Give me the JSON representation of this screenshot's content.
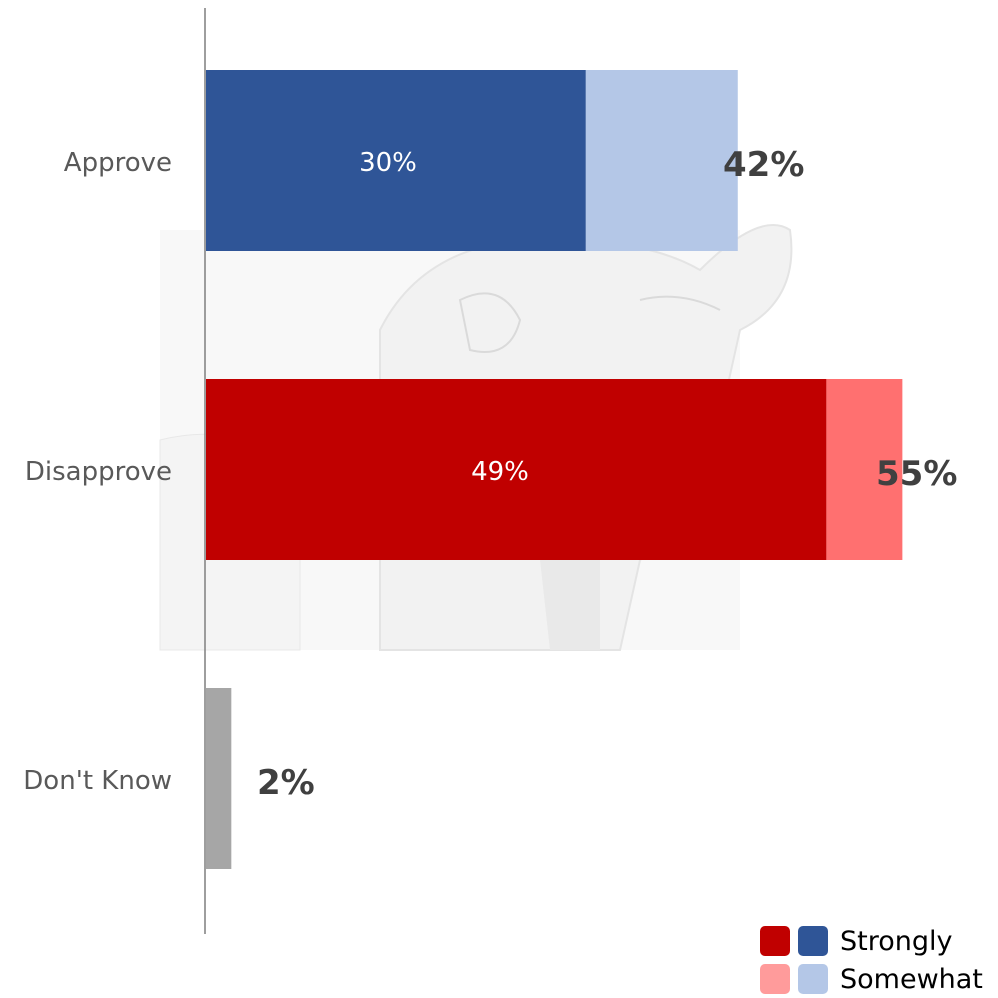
{
  "chart_data": {
    "type": "bar",
    "orientation": "horizontal",
    "stacked": true,
    "categories": [
      "Approve",
      "Disapprove",
      "Don't Know"
    ],
    "series": [
      {
        "name": "Strongly",
        "values": [
          30,
          49,
          2
        ]
      },
      {
        "name": "Somewhat",
        "values": [
          12,
          6,
          0
        ]
      }
    ],
    "totals": [
      42,
      55,
      2
    ],
    "inbar_labels": [
      "30%",
      "49%",
      ""
    ],
    "total_labels": [
      "42%",
      "55%",
      "2%"
    ],
    "colors": {
      "approve_strongly": "#2f5597",
      "approve_somewhat": "#b4c7e7",
      "disapprove_strongly": "#c00000",
      "disapprove_somewhat": "#ff7070",
      "dont_know": "#a6a6a6",
      "axis": "#7f7f7f"
    },
    "xlim": [
      0,
      62
    ],
    "grid": false,
    "background_image": "sketch portrait (decorative)",
    "legend": {
      "placement": "bottom-right",
      "entries": [
        {
          "label": "Strongly",
          "colors": [
            "#c00000",
            "#2f5597"
          ]
        },
        {
          "label": "Somewhat",
          "colors": [
            "#ff9b9b",
            "#b4c7e7"
          ]
        }
      ]
    }
  }
}
